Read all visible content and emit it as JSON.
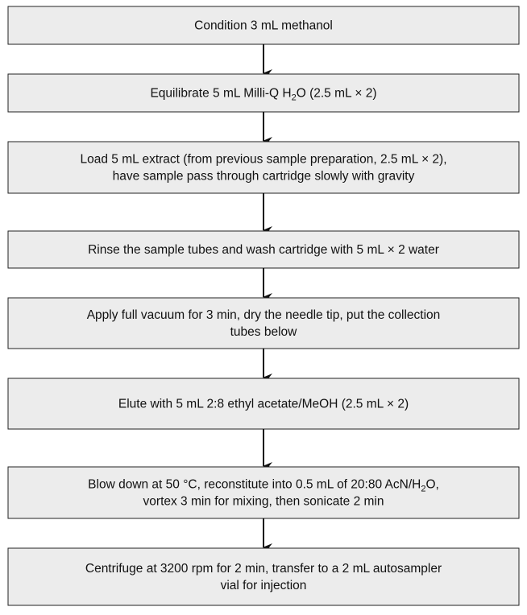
{
  "nodes": [
    {
      "lines": [
        [
          {
            "text": "Condition 3 mL methanol"
          }
        ]
      ]
    },
    {
      "lines": [
        [
          {
            "text": "Equilibrate 5 mL Milli-Q H"
          },
          {
            "sub": "2"
          },
          {
            "text": "O (2.5 mL × 2)"
          }
        ]
      ]
    },
    {
      "lines": [
        [
          {
            "text": "Load 5 mL extract (from previous sample preparation, 2.5 mL × 2),"
          }
        ],
        [
          {
            "text": "have sample pass through cartridge slowly with gravity"
          }
        ]
      ]
    },
    {
      "lines": [
        [
          {
            "text": "Rinse the sample tubes and wash cartridge with 5 mL × 2 water"
          }
        ]
      ]
    },
    {
      "lines": [
        [
          {
            "text": "Apply full vacuum for 3 min, dry the needle tip, put the collection"
          }
        ],
        [
          {
            "text": "tubes below"
          }
        ]
      ]
    },
    {
      "lines": [
        [
          {
            "text": "Elute with 5 mL 2:8 ethyl acetate/MeOH (2.5 mL × 2)"
          }
        ]
      ]
    },
    {
      "lines": [
        [
          {
            "text": "Blow down at 50 °C, reconstitute into 0.5 mL of 20:80 AcN/H"
          },
          {
            "sub": "2"
          },
          {
            "text": "O,"
          }
        ],
        [
          {
            "text": "vortex 3 min for mixing, then sonicate 2 min"
          }
        ]
      ]
    },
    {
      "lines": [
        [
          {
            "text": "Centrifuge at 3200 rpm for 2 min, transfer to a 2 mL autosampler"
          }
        ],
        [
          {
            "text": "vial for injection"
          }
        ]
      ]
    }
  ]
}
